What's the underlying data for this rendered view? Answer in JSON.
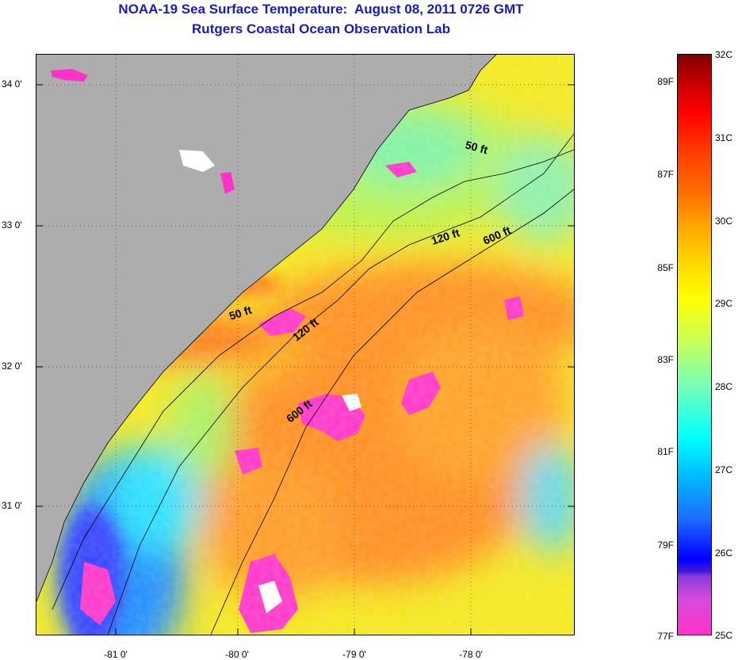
{
  "header": {
    "title_line_1": "NOAA-19 Sea Surface Temperature:  August 08, 2011 0726 GMT",
    "title_line_2": "Rutgers Coastal Ocean Observation Lab"
  },
  "map": {
    "latitude_labels": [
      "34 0'",
      "33 0'",
      "32 0'",
      "31 0'"
    ],
    "longitude_labels": [
      "-81 0'",
      "-80 0'",
      "-79 0'",
      "-78 0'"
    ],
    "contours": {
      "c50a": "50 ft",
      "c50b": "50 ft",
      "c120a": "120 ft",
      "c120b": "120 ft",
      "c600a": "600 ft",
      "c600b": "600 ft"
    },
    "colors": {
      "land": "#adadad",
      "cloud_mask": "#ff32c8"
    }
  },
  "colorbar": {
    "fahrenheit_labels": [
      "89F",
      "87F",
      "85F",
      "83F",
      "81F",
      "79F",
      "77F"
    ],
    "celsius_labels": [
      "32C",
      "31C",
      "30C",
      "29C",
      "28C",
      "27C",
      "26C",
      "25C"
    ]
  }
}
